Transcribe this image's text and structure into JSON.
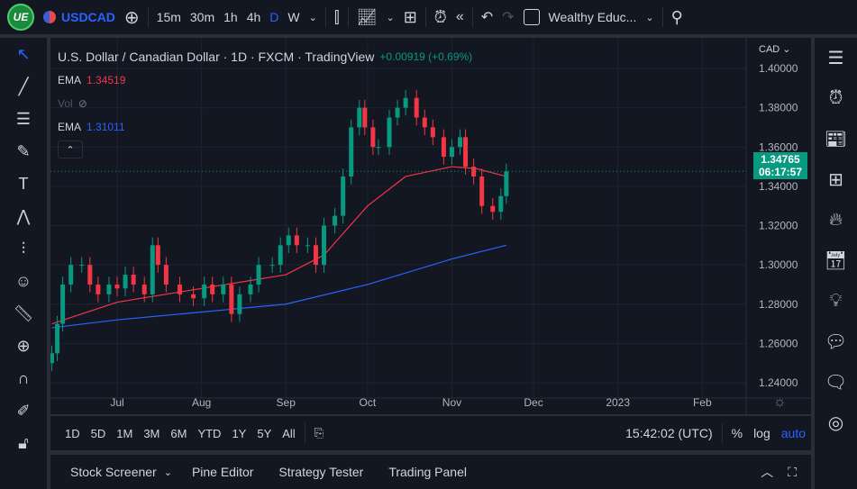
{
  "topbar": {
    "logo": "UE",
    "symbol": "USDCAD",
    "intervals": [
      "15m",
      "30m",
      "1h",
      "4h",
      "D",
      "W"
    ],
    "active_interval": "D",
    "layout_name": "Wealthy Educ...",
    "icons": [
      "add-symbol-icon",
      "candles-icon",
      "indicators-icon",
      "layouts-icon",
      "alert-icon",
      "replay-icon",
      "undo-icon",
      "redo-icon",
      "search-icon"
    ]
  },
  "legend": {
    "title": "U.S. Dollar / Canadian Dollar · 1D · FXCM · TradingView",
    "change": "+0.00919 (+0.69%)",
    "ema1_label": "EMA",
    "ema1_value": "1.34519",
    "vol_label": "Vol",
    "ema2_label": "EMA",
    "ema2_value": "1.31011"
  },
  "price_axis": {
    "currency": "CAD",
    "ticks": [
      "1.40000",
      "1.38000",
      "1.36000",
      "1.34000",
      "1.32000",
      "1.30000",
      "1.28000",
      "1.26000",
      "1.24000"
    ],
    "last_price": "1.34765",
    "countdown": "06:17:57"
  },
  "time_axis": {
    "ticks": [
      "Jul",
      "Aug",
      "Sep",
      "Oct",
      "Nov",
      "Dec",
      "2023",
      "Feb"
    ]
  },
  "range_bar": {
    "ranges": [
      "1D",
      "5D",
      "1M",
      "3M",
      "6M",
      "YTD",
      "1Y",
      "5Y",
      "All"
    ],
    "clock": "15:42:02 (UTC)",
    "percent": "%",
    "log": "log",
    "auto": "auto"
  },
  "bottom_panel": {
    "tabs": [
      "Stock Screener",
      "Pine Editor",
      "Strategy Tester",
      "Trading Panel"
    ]
  },
  "colors": {
    "up": "#089981",
    "down": "#f23645",
    "ema_fast": "#f23645",
    "ema_slow": "#2962ff",
    "accent": "#2962ff"
  },
  "chart_data": {
    "type": "candlestick",
    "ylim": [
      1.24,
      1.4
    ],
    "grid": true,
    "closes": [
      [
        "2022-06-07",
        1.255
      ],
      [
        "2022-06-09",
        1.27
      ],
      [
        "2022-06-11",
        1.29
      ],
      [
        "2022-06-14",
        1.3
      ],
      [
        "2022-06-18",
        1.3
      ],
      [
        "2022-06-21",
        1.29
      ],
      [
        "2022-06-24",
        1.285
      ],
      [
        "2022-06-28",
        1.29
      ],
      [
        "2022-07-01",
        1.288
      ],
      [
        "2022-07-04",
        1.295
      ],
      [
        "2022-07-07",
        1.29
      ],
      [
        "2022-07-11",
        1.285
      ],
      [
        "2022-07-14",
        1.31
      ],
      [
        "2022-07-16",
        1.3
      ],
      [
        "2022-07-19",
        1.29
      ],
      [
        "2022-07-24",
        1.285
      ],
      [
        "2022-07-29",
        1.283
      ],
      [
        "2022-08-02",
        1.29
      ],
      [
        "2022-08-05",
        1.285
      ],
      [
        "2022-08-09",
        1.29
      ],
      [
        "2022-08-12",
        1.275
      ],
      [
        "2022-08-15",
        1.285
      ],
      [
        "2022-08-19",
        1.29
      ],
      [
        "2022-08-22",
        1.3
      ],
      [
        "2022-08-27",
        1.3
      ],
      [
        "2022-08-30",
        1.31
      ],
      [
        "2022-09-02",
        1.315
      ],
      [
        "2022-09-05",
        1.31
      ],
      [
        "2022-09-09",
        1.31
      ],
      [
        "2022-09-12",
        1.3
      ],
      [
        "2022-09-15",
        1.32
      ],
      [
        "2022-09-19",
        1.325
      ],
      [
        "2022-09-22",
        1.345
      ],
      [
        "2022-09-25",
        1.37
      ],
      [
        "2022-09-28",
        1.38
      ],
      [
        "2022-09-30",
        1.37
      ],
      [
        "2022-10-03",
        1.36
      ],
      [
        "2022-10-05",
        1.36
      ],
      [
        "2022-10-09",
        1.375
      ],
      [
        "2022-10-12",
        1.38
      ],
      [
        "2022-10-15",
        1.385
      ],
      [
        "2022-10-19",
        1.375
      ],
      [
        "2022-10-22",
        1.37
      ],
      [
        "2022-10-25",
        1.365
      ],
      [
        "2022-10-29",
        1.355
      ],
      [
        "2022-11-01",
        1.36
      ],
      [
        "2022-11-04",
        1.365
      ],
      [
        "2022-11-06",
        1.35
      ],
      [
        "2022-11-09",
        1.345
      ],
      [
        "2022-11-12",
        1.33
      ],
      [
        "2022-11-16",
        1.327
      ],
      [
        "2022-11-19",
        1.335
      ],
      [
        "2022-11-21",
        1.3476
      ]
    ],
    "ema_fast": [
      [
        "2022-06-07",
        1.27
      ],
      [
        "2022-07-01",
        1.281
      ],
      [
        "2022-08-01",
        1.288
      ],
      [
        "2022-09-01",
        1.295
      ],
      [
        "2022-09-15",
        1.305
      ],
      [
        "2022-10-01",
        1.33
      ],
      [
        "2022-10-15",
        1.345
      ],
      [
        "2022-11-01",
        1.35
      ],
      [
        "2022-11-10",
        1.349
      ],
      [
        "2022-11-21",
        1.345
      ]
    ],
    "ema_slow": [
      [
        "2022-06-07",
        1.268
      ],
      [
        "2022-07-01",
        1.272
      ],
      [
        "2022-08-01",
        1.276
      ],
      [
        "2022-09-01",
        1.28
      ],
      [
        "2022-10-01",
        1.29
      ],
      [
        "2022-11-01",
        1.303
      ],
      [
        "2022-11-21",
        1.31
      ]
    ]
  }
}
